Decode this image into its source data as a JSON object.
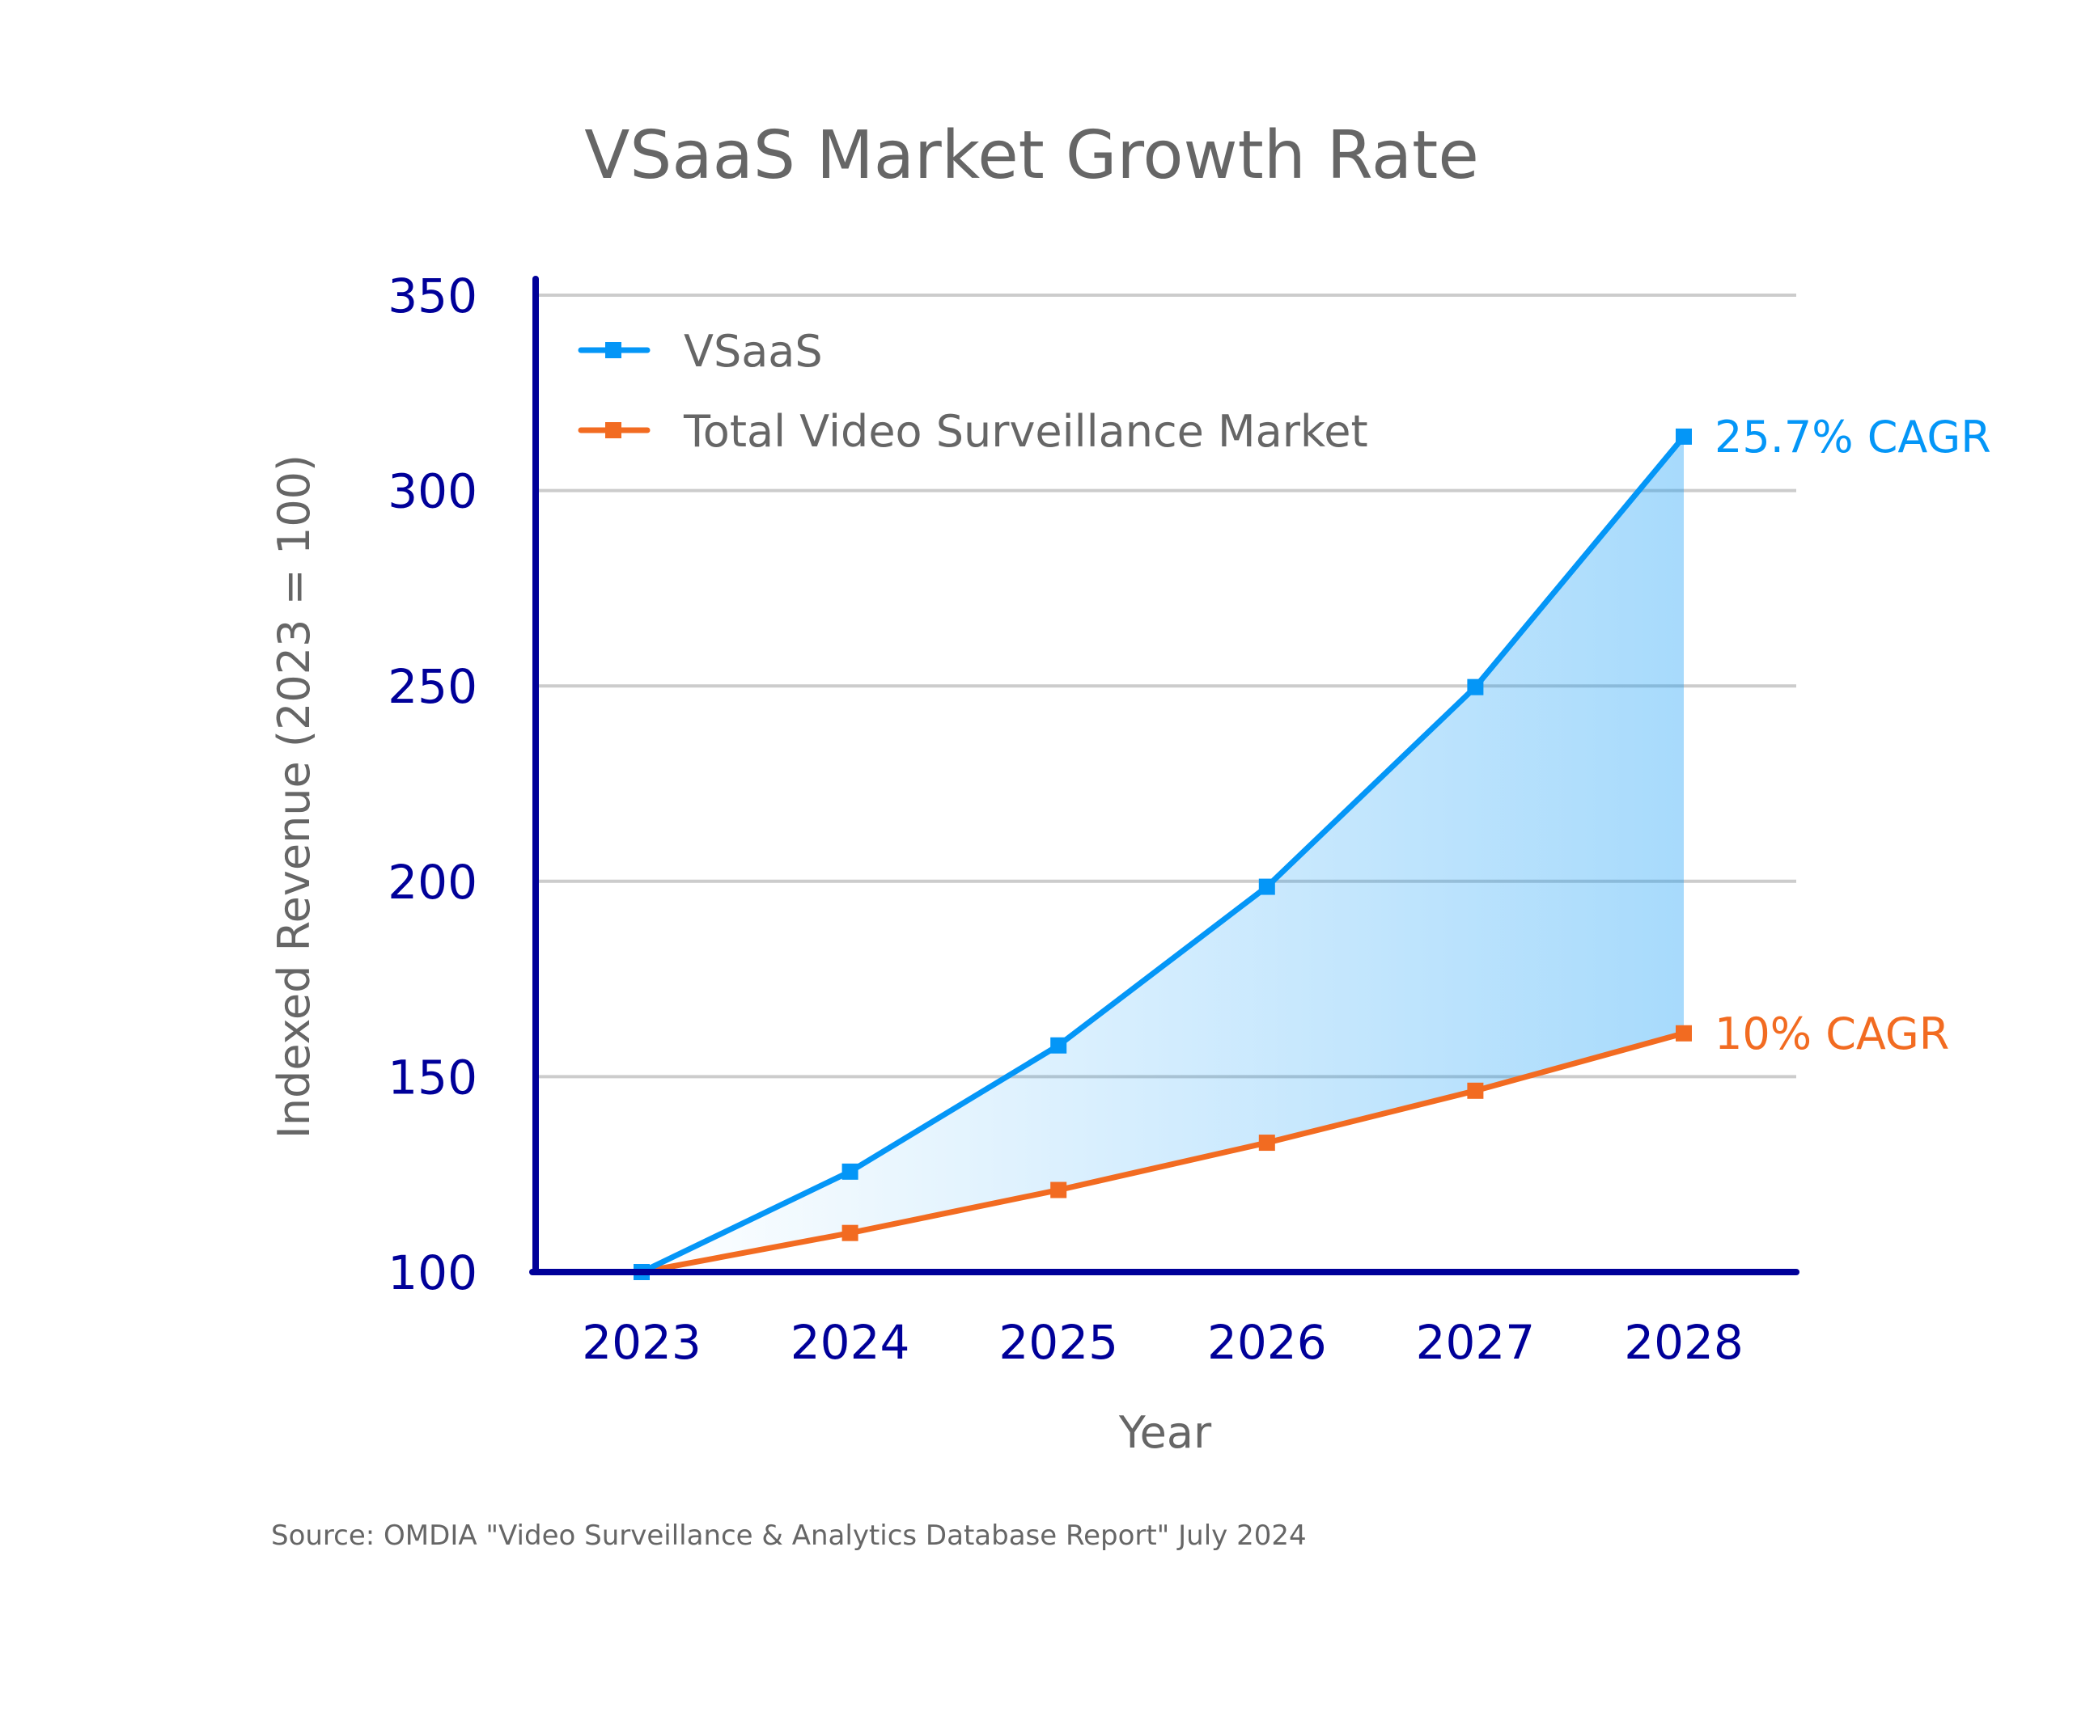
{
  "chart_data": {
    "type": "line",
    "title": "VSaaS Market Growth Rate",
    "xlabel": "Year",
    "ylabel": "Indexed Revenue (2023 = 100)",
    "categories": [
      "2023",
      "2024",
      "2025",
      "2026",
      "2027",
      "2028"
    ],
    "ylim": [
      100,
      350
    ],
    "yticks": [
      100,
      150,
      200,
      250,
      300,
      350
    ],
    "grid": true,
    "legend_position": "top-left",
    "series": [
      {
        "name": "VSaaS",
        "color": "#0496f7",
        "values": [
          100,
          125.7,
          158,
          198.6,
          249.7,
          313.8
        ],
        "end_label": "25.7% CAGR"
      },
      {
        "name": "Total Video Surveillance Market",
        "color": "#f26b21",
        "values": [
          100,
          110,
          121,
          133.1,
          146.4,
          161.1
        ],
        "end_label": "10% CAGR"
      }
    ],
    "fill_between": {
      "color": "#0496f7",
      "description": "shaded gap between series"
    },
    "source": "Source: OMDIA \"Video Surveillance & Analytics Database Report\" July 2024"
  },
  "colors": {
    "axis": "#000099",
    "grid": "#cccccc",
    "text_gray": "#666666"
  }
}
